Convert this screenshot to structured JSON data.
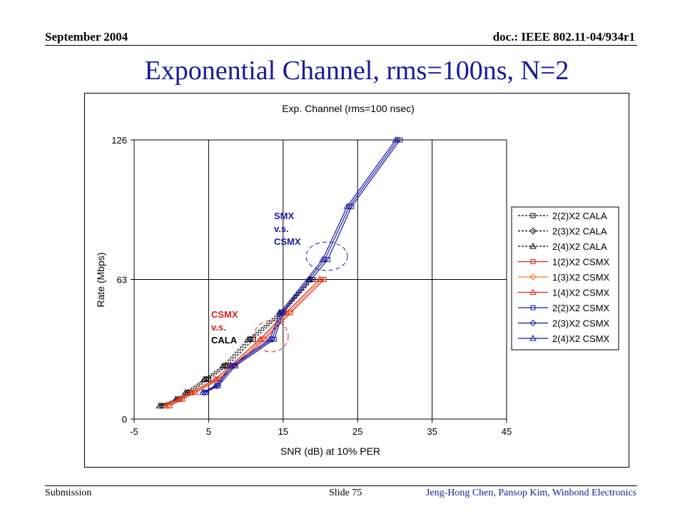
{
  "header": {
    "date": "September 2004",
    "doc": "doc.: IEEE 802.11-04/934r1"
  },
  "slide_title": "Exponential Channel, rms=100ns, N=2",
  "footer": {
    "left": "Submission",
    "middle": "Slide 75",
    "right": "Jeng-Hong Chen, Pansop Kim, Winbond Electronics"
  },
  "annotations": {
    "smx": [
      "SMX",
      "v.s.",
      "CSMX"
    ],
    "csmx": [
      "CSMX",
      "v.s.",
      "CALA"
    ]
  },
  "chart_data": {
    "type": "line",
    "title": "Exp. Channel (rms=100 nsec)",
    "xlabel": "SNR (dB) at 10% PER",
    "ylabel": "Rate (Mbps)",
    "xlim": [
      -5,
      45
    ],
    "ylim": [
      0,
      126
    ],
    "xticks": [
      -5,
      5,
      15,
      25,
      35,
      45
    ],
    "yticks": [
      0,
      63,
      126
    ],
    "grid": "vertical gridlines and horizontal lines at y ticks",
    "legend_position": "right",
    "series": [
      {
        "name": "2(2)X2 CALA",
        "color": "#000000",
        "dash": "3,2",
        "marker": "square",
        "x": [
          -1.0,
          1.2,
          2.5,
          5.0,
          7.5,
          11.0,
          15.0,
          19.0
        ],
        "y": [
          6,
          9,
          12,
          18,
          24,
          36,
          48,
          63
        ]
      },
      {
        "name": "2(3)X2 CALA",
        "color": "#000000",
        "dash": "3,2",
        "marker": "diamond",
        "x": [
          -1.3,
          0.9,
          2.2,
          4.7,
          7.2,
          10.6,
          14.8,
          18.7
        ],
        "y": [
          6,
          9,
          12,
          18,
          24,
          36,
          48,
          63
        ]
      },
      {
        "name": "2(4)X2 CALA",
        "color": "#000000",
        "dash": "3,2",
        "marker": "triangle",
        "x": [
          -1.6,
          0.6,
          1.9,
          4.4,
          6.9,
          10.3,
          14.5,
          18.5
        ],
        "y": [
          6,
          9,
          12,
          18,
          24,
          36,
          48,
          63
        ]
      },
      {
        "name": "1(2)X2 CSMX",
        "color": "#e0201a",
        "dash": "",
        "marker": "square",
        "x": [
          -0.2,
          1.5,
          3.2,
          6.5,
          8.5,
          12.5,
          16.0,
          20.5
        ],
        "y": [
          6,
          9,
          12,
          18,
          24,
          36,
          48,
          63
        ]
      },
      {
        "name": "1(3)X2 CSMX",
        "color": "#f07a2a",
        "dash": "",
        "marker": "diamond",
        "x": [
          -0.5,
          1.2,
          2.9,
          6.2,
          8.2,
          12.2,
          15.7,
          20.2
        ],
        "y": [
          6,
          9,
          12,
          18,
          24,
          36,
          48,
          63
        ]
      },
      {
        "name": "1(4)X2 CSMX",
        "color": "#e0201a",
        "dash": "",
        "marker": "triangle",
        "x": [
          -0.8,
          0.9,
          2.6,
          5.9,
          7.9,
          11.9,
          15.4,
          19.9
        ],
        "y": [
          6,
          9,
          12,
          18,
          24,
          36,
          48,
          63
        ]
      },
      {
        "name": "2(2)X2 CSMX",
        "color": "#1a1aa0",
        "dash": "",
        "marker": "square",
        "x": [
          4.6,
          6.3,
          8.6,
          13.8,
          15.0,
          21.0,
          24.2,
          30.7
        ],
        "y": [
          12,
          15,
          24,
          36,
          48,
          72,
          96,
          126
        ]
      },
      {
        "name": "2(3)X2 CSMX",
        "color": "#1a1aa0",
        "dash": "",
        "marker": "diamond",
        "x": [
          4.4,
          6.1,
          8.3,
          13.5,
          14.8,
          20.6,
          23.9,
          30.4
        ],
        "y": [
          12,
          15,
          24,
          36,
          48,
          72,
          96,
          126
        ]
      },
      {
        "name": "2(4)X2 CSMX",
        "color": "#1a1aa0",
        "dash": "",
        "marker": "triangle",
        "x": [
          4.2,
          5.9,
          8.0,
          13.2,
          14.6,
          20.3,
          23.6,
          30.1
        ],
        "y": [
          12,
          15,
          24,
          36,
          48,
          72,
          96,
          126
        ]
      }
    ]
  }
}
